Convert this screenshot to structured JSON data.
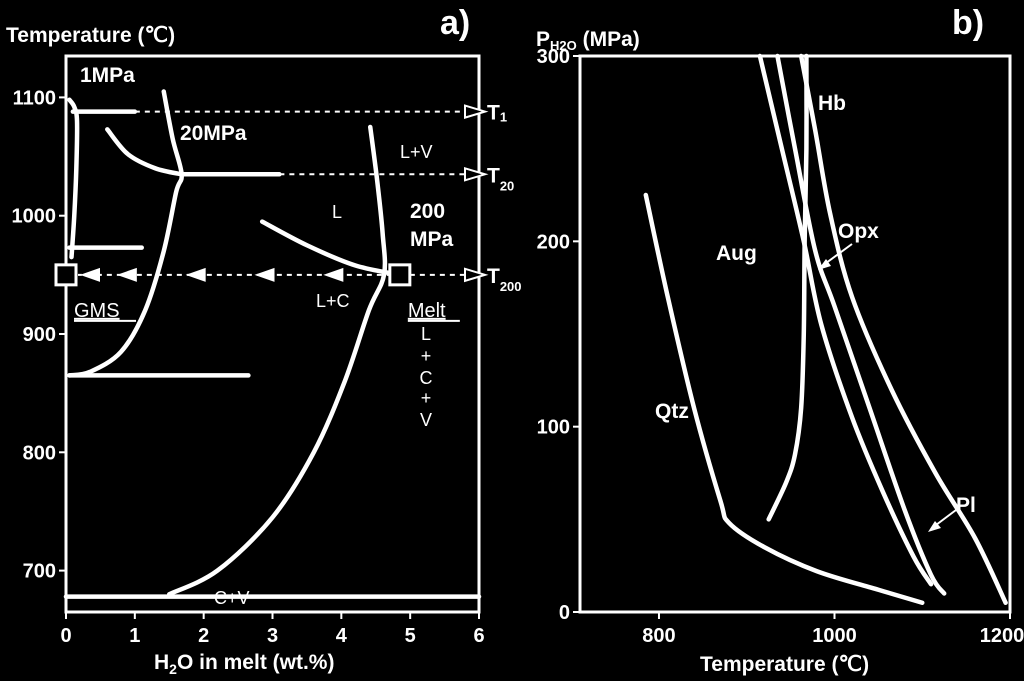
{
  "chart_data": [
    {
      "panel": "a)",
      "type": "line",
      "ylabel": "Temperature (℃)",
      "xlabel": "H2O in melt (wt.%)",
      "xlabel_parts": {
        "prefix": "H",
        "sub": "2",
        "suffix": "O in melt (wt.%)"
      },
      "xlim": [
        0,
        6
      ],
      "ylim": [
        665,
        1135
      ],
      "xticks": [
        0,
        1,
        2,
        3,
        4,
        5,
        6
      ],
      "yticks": [
        700,
        800,
        900,
        1000,
        1100
      ],
      "curves": [
        {
          "name": "1MPa",
          "points": [
            [
              0.05,
              1098
            ],
            [
              0.12,
              1092
            ],
            [
              0.16,
              1080
            ],
            [
              0.15,
              1040
            ],
            [
              0.12,
              1000
            ],
            [
              0.08,
              965
            ]
          ]
        },
        {
          "name": "20MPa",
          "points": [
            [
              0.05,
              865
            ],
            [
              0.35,
              868
            ],
            [
              0.8,
              885
            ],
            [
              1.15,
              920
            ],
            [
              1.42,
              970
            ],
            [
              1.6,
              1020
            ],
            [
              1.68,
              1035
            ],
            [
              1.55,
              1065
            ],
            [
              1.42,
              1105
            ]
          ]
        },
        {
          "name": "20MPa-branch",
          "points": [
            [
              0.6,
              1073
            ],
            [
              0.9,
              1052
            ],
            [
              1.3,
              1040
            ],
            [
              1.68,
              1035
            ]
          ]
        },
        {
          "name": "200MPa",
          "points": [
            [
              1.5,
              680
            ],
            [
              2.2,
              700
            ],
            [
              3.0,
              745
            ],
            [
              3.6,
              800
            ],
            [
              4.05,
              860
            ],
            [
              4.4,
              920
            ],
            [
              4.62,
              950
            ],
            [
              4.6,
              985
            ],
            [
              4.52,
              1030
            ],
            [
              4.42,
              1075
            ]
          ]
        },
        {
          "name": "200MPa-branch",
          "points": [
            [
              2.85,
              995
            ],
            [
              3.5,
              975
            ],
            [
              4.2,
              958
            ],
            [
              4.85,
              950
            ]
          ]
        }
      ],
      "isotherms": [
        {
          "y": 1088,
          "x": [
            0.1,
            1.0
          ]
        },
        {
          "y": 1035,
          "x": [
            1.68,
            3.1
          ]
        },
        {
          "y": 973,
          "x": [
            0.05,
            1.1
          ]
        },
        {
          "y": 865,
          "x": [
            0.05,
            2.65
          ]
        },
        {
          "y": 678,
          "x": [
            0.0,
            6.0
          ]
        }
      ],
      "tie_lines": [
        {
          "label": "T 1",
          "y": 1088,
          "x_from": 1.0
        },
        {
          "label": "T20",
          "y": 1035,
          "x_from": 3.1
        },
        {
          "label": "T200",
          "y": 950,
          "x_from": 4.85
        }
      ],
      "tie_labels": [
        {
          "main": "T",
          "sub": "1"
        },
        {
          "main": "T",
          "sub": "20"
        },
        {
          "main": "T",
          "sub": "200"
        }
      ],
      "crystallization_arrow": {
        "from": [
          4.85,
          950
        ],
        "to": [
          0.0,
          950
        ],
        "arrowheads_at": [
          4.0,
          3.0,
          2.0,
          1.0
        ]
      },
      "markers": [
        {
          "label": "GMS",
          "x": 0.0,
          "y": 950
        },
        {
          "label": "Melt",
          "x": 4.85,
          "y": 950
        }
      ],
      "annotations": {
        "p1": "1MPa",
        "p20": "20MPa",
        "p200a": "200",
        "p200b": "MPa",
        "lv": "L+V",
        "l": "L",
        "lc": "L+C",
        "cv": "C+V",
        "lcv": [
          "L",
          "+",
          "C",
          "+",
          "V"
        ]
      }
    },
    {
      "panel": "b)",
      "type": "line",
      "ylabel": "PH2O (MPa)",
      "ylabel_parts": {
        "prefix": "P",
        "sub": "H2O",
        "suffix": " (MPa)"
      },
      "xlabel": "Temperature (℃)",
      "xlim": [
        710,
        1200
      ],
      "ylim": [
        0,
        300
      ],
      "xticks": [
        800,
        1000,
        1200
      ],
      "yticks": [
        0,
        100,
        200,
        300
      ],
      "curves": [
        {
          "name": "Hb",
          "points": [
            [
              968,
              300
            ],
            [
              968,
              250
            ],
            [
              966,
              200
            ],
            [
              965,
              150
            ],
            [
              962,
              110
            ],
            [
              955,
              85
            ],
            [
              945,
              70
            ],
            [
              925,
              50
            ]
          ]
        },
        {
          "name": "Opx",
          "points": [
            [
              935,
              300
            ],
            [
              955,
              250
            ],
            [
              978,
              195
            ],
            [
              1000,
              165
            ],
            [
              1040,
              110
            ],
            [
              1080,
              55
            ],
            [
              1110,
              20
            ],
            [
              1125,
              10
            ]
          ]
        },
        {
          "name": "Aug",
          "points": [
            [
              915,
              300
            ],
            [
              940,
              250
            ],
            [
              965,
              200
            ],
            [
              985,
              155
            ],
            [
              1020,
              105
            ],
            [
              1055,
              65
            ],
            [
              1090,
              30
            ],
            [
              1110,
              15
            ]
          ]
        },
        {
          "name": "Pl",
          "points": [
            [
              962,
              300
            ],
            [
              978,
              260
            ],
            [
              995,
              215
            ],
            [
              1020,
              170
            ],
            [
              1065,
              120
            ],
            [
              1115,
              75
            ],
            [
              1160,
              40
            ],
            [
              1195,
              5
            ]
          ]
        },
        {
          "name": "Qtz",
          "points": [
            [
              785,
              225
            ],
            [
              810,
              170
            ],
            [
              840,
              110
            ],
            [
              870,
              60
            ],
            [
              880,
              48
            ],
            [
              920,
              35
            ],
            [
              980,
              22
            ],
            [
              1050,
              12
            ],
            [
              1100,
              5
            ]
          ]
        }
      ],
      "labels": [
        "Hb",
        "Opx",
        "Aug",
        "Qtz",
        "Pl"
      ]
    }
  ]
}
